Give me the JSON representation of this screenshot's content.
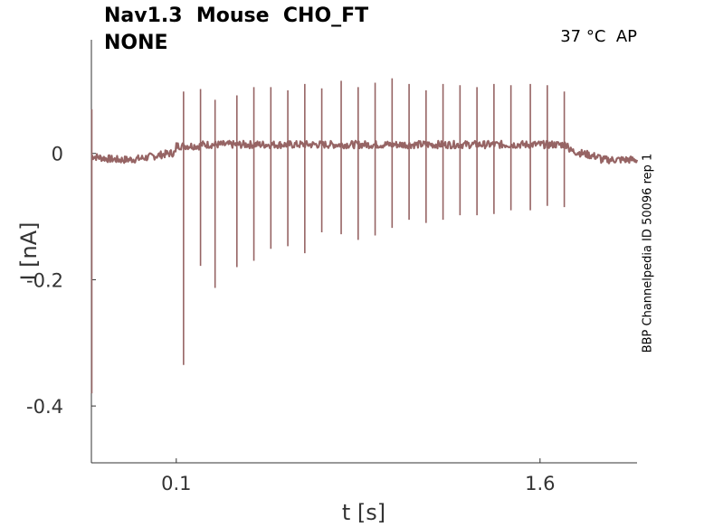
{
  "chart_data": {
    "type": "line",
    "title_line1": "Nav1.3  Mouse  CHO_FT",
    "title_line2": "NONE",
    "conditions": "37 °C  AP",
    "side_label": "BBP Channelpedia ID 50096 rep 1",
    "xlabel": "t [s]",
    "ylabel": "I [nA]",
    "xlim": [
      -0.25,
      2.0
    ],
    "ylim": [
      -0.49,
      0.18
    ],
    "xticks": [
      {
        "value": 0.1,
        "label": "0.1"
      },
      {
        "value": 1.6,
        "label": "1.6"
      }
    ],
    "yticks": [
      {
        "value": 0,
        "label": "0"
      },
      {
        "value": -0.2,
        "label": "-0.2"
      },
      {
        "value": -0.4,
        "label": "-0.4"
      }
    ],
    "grid": false,
    "series": [
      {
        "color": "#966464",
        "baseline": 0.0,
        "spikes": [
          {
            "t": 0.13,
            "peak": 0.098,
            "trough": -0.335
          },
          {
            "t": 0.2,
            "peak": 0.102,
            "trough": -0.178
          },
          {
            "t": 0.26,
            "peak": 0.085,
            "trough": -0.213
          },
          {
            "t": 0.35,
            "peak": 0.092,
            "trough": -0.18
          },
          {
            "t": 0.42,
            "peak": 0.105,
            "trough": -0.17
          },
          {
            "t": 0.49,
            "peak": 0.105,
            "trough": -0.151
          },
          {
            "t": 0.56,
            "peak": 0.1,
            "trough": -0.147
          },
          {
            "t": 0.63,
            "peak": 0.11,
            "trough": -0.158
          },
          {
            "t": 0.7,
            "peak": 0.103,
            "trough": -0.125
          },
          {
            "t": 0.78,
            "peak": 0.115,
            "trough": -0.128
          },
          {
            "t": 0.85,
            "peak": 0.105,
            "trough": -0.137
          },
          {
            "t": 0.92,
            "peak": 0.112,
            "trough": -0.13
          },
          {
            "t": 0.99,
            "peak": 0.119,
            "trough": -0.118
          },
          {
            "t": 1.06,
            "peak": 0.11,
            "trough": -0.105
          },
          {
            "t": 1.13,
            "peak": 0.1,
            "trough": -0.11
          },
          {
            "t": 1.2,
            "peak": 0.11,
            "trough": -0.105
          },
          {
            "t": 1.27,
            "peak": 0.108,
            "trough": -0.098
          },
          {
            "t": 1.34,
            "peak": 0.105,
            "trough": -0.098
          },
          {
            "t": 1.41,
            "peak": 0.11,
            "trough": -0.096
          },
          {
            "t": 1.48,
            "peak": 0.108,
            "trough": -0.09
          },
          {
            "t": 1.56,
            "peak": 0.11,
            "trough": -0.09
          },
          {
            "t": 1.63,
            "peak": 0.108,
            "trough": -0.083
          },
          {
            "t": 1.7,
            "peak": 0.098,
            "trough": -0.085
          }
        ]
      }
    ]
  }
}
